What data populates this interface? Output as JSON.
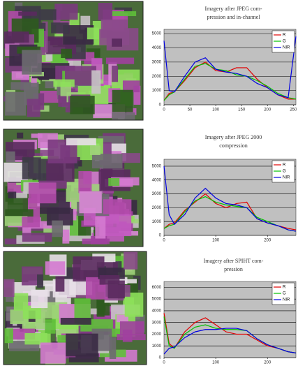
{
  "chart_data": [
    {
      "type": "line",
      "title": "Imagery after JPEG com-",
      "subtitle": "pression and in-channel",
      "x": [
        0,
        10,
        20,
        40,
        60,
        80,
        100,
        120,
        140,
        160,
        180,
        200,
        220,
        240,
        255
      ],
      "series": [
        {
          "name": "R",
          "color": "#e00000",
          "values": [
            300,
            800,
            900,
            1700,
            2600,
            3000,
            2400,
            2300,
            2600,
            2600,
            1800,
            1200,
            700,
            400,
            400
          ]
        },
        {
          "name": "G",
          "color": "#00c000",
          "values": [
            300,
            700,
            900,
            1800,
            2700,
            2900,
            2500,
            2400,
            2100,
            2000,
            1700,
            1300,
            800,
            500,
            400
          ]
        },
        {
          "name": "NIR",
          "color": "#0000e0",
          "values": [
            4500,
            1000,
            900,
            2000,
            3000,
            3300,
            2500,
            2300,
            2200,
            2000,
            1500,
            1200,
            700,
            500,
            4800
          ]
        }
      ],
      "xlim": [
        0,
        255
      ],
      "ylim": [
        0,
        5300
      ],
      "xticks": [
        0,
        50,
        100,
        150,
        200,
        250
      ],
      "yticks": [
        0,
        1000,
        2000,
        3000,
        4000,
        5000
      ],
      "grid": true,
      "legend": "upper right"
    },
    {
      "type": "line",
      "title": "Imagery after JPEG 2000",
      "subtitle": "compression",
      "x": [
        0,
        10,
        20,
        40,
        60,
        80,
        100,
        120,
        140,
        160,
        180,
        200,
        220,
        240,
        255
      ],
      "series": [
        {
          "name": "R",
          "color": "#e00000",
          "values": [
            500,
            800,
            900,
            1800,
            2400,
            3000,
            2300,
            2000,
            2300,
            2400,
            1200,
            900,
            700,
            500,
            400
          ]
        },
        {
          "name": "G",
          "color": "#00c000",
          "values": [
            500,
            700,
            800,
            1700,
            2500,
            2800,
            2400,
            2200,
            2100,
            2000,
            1300,
            1000,
            700,
            400,
            300
          ]
        },
        {
          "name": "NIR",
          "color": "#0000e0",
          "values": [
            5000,
            1500,
            800,
            1500,
            2700,
            3400,
            2700,
            2300,
            2200,
            2000,
            1200,
            900,
            700,
            400,
            300
          ]
        }
      ],
      "xlim": [
        0,
        255
      ],
      "ylim": [
        0,
        5500
      ],
      "xticks": [
        0,
        100,
        200
      ],
      "yticks": [
        0,
        1000,
        2000,
        3000,
        4000,
        5000
      ],
      "grid": true,
      "legend": "upper right"
    },
    {
      "type": "line",
      "title": "Imagery after SPIHT com-",
      "subtitle": "pression",
      "x": [
        0,
        10,
        20,
        40,
        60,
        80,
        100,
        120,
        140,
        160,
        180,
        200,
        220,
        240,
        255
      ],
      "series": [
        {
          "name": "R",
          "color": "#e00000",
          "values": [
            3800,
            1200,
            800,
            2200,
            3000,
            3400,
            2800,
            2200,
            2000,
            2000,
            1500,
            1000,
            800,
            500,
            400
          ]
        },
        {
          "name": "G",
          "color": "#00c000",
          "values": [
            3500,
            1000,
            800,
            2000,
            2600,
            2800,
            2500,
            2400,
            2400,
            2300,
            1600,
            1100,
            800,
            500,
            400
          ]
        },
        {
          "name": "NIR",
          "color": "#0000e0",
          "values": [
            300,
            800,
            900,
            1700,
            2200,
            2400,
            2400,
            2500,
            2500,
            2300,
            1600,
            1100,
            800,
            500,
            400
          ]
        }
      ],
      "xlim": [
        0,
        255
      ],
      "ylim": [
        0,
        6500
      ],
      "xticks": [
        0,
        100,
        200
      ],
      "yticks": [
        0,
        1000,
        2000,
        3000,
        4000,
        5000,
        6000
      ],
      "grid": true,
      "legend": "upper right"
    }
  ]
}
